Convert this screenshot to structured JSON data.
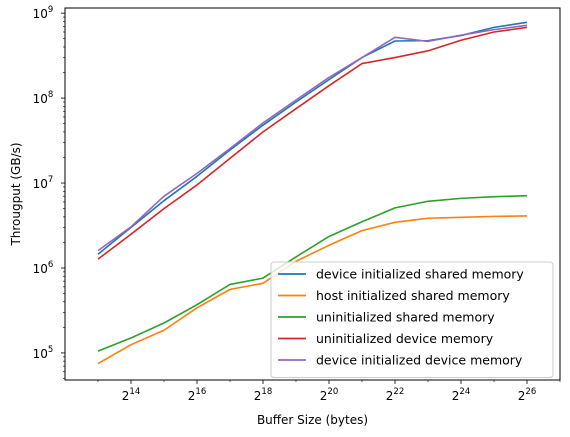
{
  "chart_data": {
    "type": "line",
    "title": "",
    "xlabel": "Buffer Size (bytes)",
    "ylabel": "Througput (GB/s)",
    "x_scale": "log2",
    "y_scale": "log10",
    "xlim": [
      4096,
      134217728
    ],
    "ylim": [
      48000,
      1150000000
    ],
    "grid": false,
    "legend_position": "lower-right",
    "x_ticks": [
      {
        "value": 16384,
        "base": "2",
        "exp": "14"
      },
      {
        "value": 65536,
        "base": "2",
        "exp": "16"
      },
      {
        "value": 262144,
        "base": "2",
        "exp": "18"
      },
      {
        "value": 1048576,
        "base": "2",
        "exp": "20"
      },
      {
        "value": 4194304,
        "base": "2",
        "exp": "22"
      },
      {
        "value": 16777216,
        "base": "2",
        "exp": "24"
      },
      {
        "value": 67108864,
        "base": "2",
        "exp": "26"
      }
    ],
    "y_ticks": [
      {
        "value": 100000,
        "base": "10",
        "exp": "5"
      },
      {
        "value": 1000000,
        "base": "10",
        "exp": "6"
      },
      {
        "value": 10000000,
        "base": "10",
        "exp": "7"
      },
      {
        "value": 100000000,
        "base": "10",
        "exp": "8"
      },
      {
        "value": 1000000000,
        "base": "10",
        "exp": "9"
      }
    ],
    "x": [
      8192,
      16384,
      32768,
      65536,
      131072,
      262144,
      524288,
      1048576,
      2097152,
      4194304,
      8388608,
      16777216,
      33554432,
      67108864
    ],
    "series": [
      {
        "name": "device initialized shared memory",
        "color": "#1f77b4",
        "values": [
          1450000,
          3000000,
          6200000,
          12000000,
          24500000,
          48000000,
          90000000,
          165000000,
          300000000,
          470000000,
          475000000,
          545000000,
          680000000,
          780000000
        ]
      },
      {
        "name": "host initialized shared memory",
        "color": "#ff7f0e",
        "values": [
          75000,
          125000,
          185000,
          340000,
          560000,
          660000,
          1200000,
          1850000,
          2750000,
          3450000,
          3850000,
          3950000,
          4050000,
          4100000
        ]
      },
      {
        "name": "uninitialized shared memory",
        "color": "#2ca02c",
        "values": [
          105000,
          150000,
          225000,
          370000,
          640000,
          760000,
          1350000,
          2350000,
          3500000,
          5100000,
          6100000,
          6600000,
          6900000,
          7100000
        ]
      },
      {
        "name": "uninitialized device memory",
        "color": "#d62728",
        "values": [
          1270000,
          2500000,
          5000000,
          9500000,
          19500000,
          40000000,
          75000000,
          140000000,
          255000000,
          300000000,
          360000000,
          480000000,
          600000000,
          680000000
        ]
      },
      {
        "name": "device initialized device memory",
        "color": "#9467bd",
        "values": [
          1600000,
          3050000,
          7000000,
          13000000,
          25500000,
          51000000,
          95000000,
          175000000,
          300000000,
          520000000,
          465000000,
          550000000,
          640000000,
          720000000
        ]
      }
    ]
  }
}
